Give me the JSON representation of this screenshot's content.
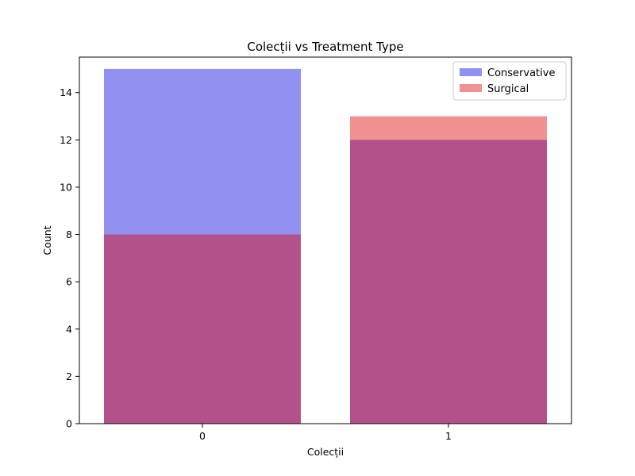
{
  "chart_data": {
    "type": "bar",
    "title": "Colecții vs Treatment Type",
    "xlabel": "Colecții",
    "ylabel": "Count",
    "categories": [
      "0",
      "1"
    ],
    "ylim": [
      0,
      15.5
    ],
    "yticks": [
      0,
      2,
      4,
      6,
      8,
      10,
      12,
      14
    ],
    "series": [
      {
        "name": "Conservative",
        "values": [
          15,
          12
        ],
        "color": "#0000e0",
        "opacity": 0.43
      },
      {
        "name": "Surgical",
        "values": [
          8,
          13
        ],
        "color": "#e00000",
        "opacity": 0.43
      }
    ],
    "overlapping_bars": true,
    "grid": false,
    "legend_position": "top-right"
  }
}
